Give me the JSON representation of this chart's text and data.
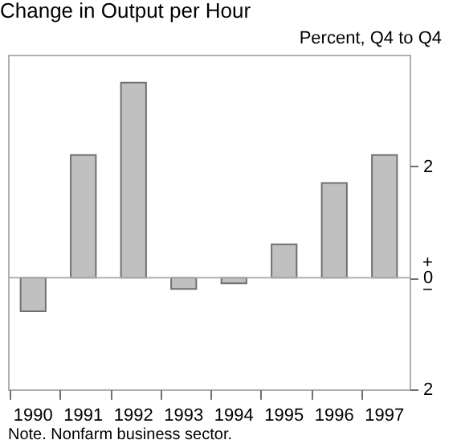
{
  "chart_data": {
    "type": "bar",
    "title": "Change in Output per Hour",
    "ylabel": "Percent, Q4 to Q4",
    "categories": [
      "1990",
      "1991",
      "1992",
      "1993",
      "1994",
      "1995",
      "1996",
      "1997"
    ],
    "values": [
      -0.6,
      2.2,
      3.5,
      -0.2,
      -0.1,
      0.6,
      1.7,
      2.2
    ],
    "color": "#c0c0c0",
    "ylim": [
      -2,
      4
    ],
    "yticks": [
      {
        "value": -2,
        "label": "2"
      },
      0,
      2
    ],
    "ref_lines": [
      {
        "axis": "y",
        "value": 0,
        "color": "#b0b0b0"
      }
    ],
    "annotations": [
      "Note.  Nonfarm business sector.",
      "+",
      "−"
    ],
    "grid": false
  }
}
